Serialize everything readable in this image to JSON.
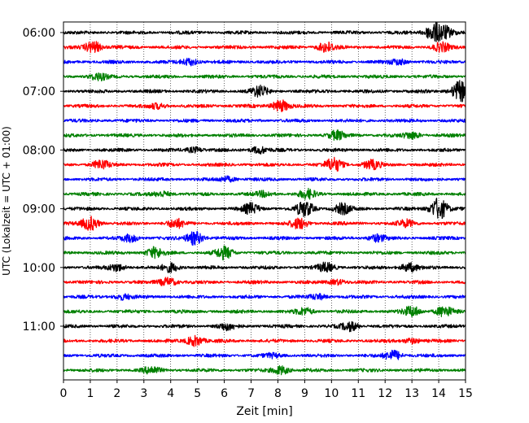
{
  "chart_data": {
    "type": "line",
    "title": "",
    "xlabel": "Zeit  [min]",
    "ylabel": "UTC (Lokalzeit = UTC + 01:00)",
    "xlim": [
      0,
      15
    ],
    "x_ticks": [
      "0",
      "1",
      "2",
      "3",
      "4",
      "5",
      "6",
      "7",
      "8",
      "9",
      "10",
      "11",
      "12",
      "13",
      "14",
      "15"
    ],
    "y_tick_labels": [
      "06:00",
      "07:00",
      "08:00",
      "09:00",
      "10:00",
      "11:00"
    ],
    "trace_interval_min": 15,
    "grid": "vertical dotted",
    "colors": [
      "#000000",
      "#ff0000",
      "#0000ff",
      "#008000"
    ],
    "traces": [
      {
        "start": "06:00",
        "color": "#000000",
        "events": [
          {
            "t": 13.8,
            "amp": 10
          },
          {
            "t": 14.2,
            "amp": 7
          }
        ]
      },
      {
        "start": "06:15",
        "color": "#ff0000",
        "events": [
          {
            "t": 1.1,
            "amp": 7
          },
          {
            "t": 9.8,
            "amp": 6
          },
          {
            "t": 14.1,
            "amp": 5
          }
        ]
      },
      {
        "start": "06:30",
        "color": "#0000ff",
        "events": [
          {
            "t": 4.7,
            "amp": 4
          },
          {
            "t": 12.5,
            "amp": 3
          }
        ]
      },
      {
        "start": "06:45",
        "color": "#008000",
        "events": [
          {
            "t": 1.3,
            "amp": 4
          }
        ]
      },
      {
        "start": "07:00",
        "color": "#000000",
        "events": [
          {
            "t": 7.3,
            "amp": 6
          },
          {
            "t": 14.8,
            "amp": 12
          }
        ]
      },
      {
        "start": "07:15",
        "color": "#ff0000",
        "events": [
          {
            "t": 8.1,
            "amp": 7
          },
          {
            "t": 3.5,
            "amp": 3
          }
        ]
      },
      {
        "start": "07:30",
        "color": "#0000ff",
        "events": []
      },
      {
        "start": "07:45",
        "color": "#008000",
        "events": [
          {
            "t": 10.2,
            "amp": 5
          },
          {
            "t": 13.0,
            "amp": 4
          }
        ]
      },
      {
        "start": "08:00",
        "color": "#000000",
        "events": [
          {
            "t": 4.9,
            "amp": 3
          },
          {
            "t": 7.3,
            "amp": 4
          }
        ]
      },
      {
        "start": "08:15",
        "color": "#ff0000",
        "events": [
          {
            "t": 1.4,
            "amp": 5
          },
          {
            "t": 10.1,
            "amp": 8
          },
          {
            "t": 11.5,
            "amp": 5
          }
        ]
      },
      {
        "start": "08:30",
        "color": "#0000ff",
        "events": [
          {
            "t": 6.1,
            "amp": 3
          }
        ]
      },
      {
        "start": "08:45",
        "color": "#008000",
        "events": [
          {
            "t": 3.7,
            "amp": 3
          },
          {
            "t": 7.5,
            "amp": 3
          },
          {
            "t": 9.1,
            "amp": 5
          }
        ]
      },
      {
        "start": "09:00",
        "color": "#000000",
        "events": [
          {
            "t": 7.0,
            "amp": 6
          },
          {
            "t": 9.0,
            "amp": 9
          },
          {
            "t": 10.4,
            "amp": 6
          },
          {
            "t": 14.0,
            "amp": 13
          }
        ]
      },
      {
        "start": "09:15",
        "color": "#ff0000",
        "events": [
          {
            "t": 1.0,
            "amp": 8
          },
          {
            "t": 4.2,
            "amp": 5
          },
          {
            "t": 8.8,
            "amp": 6
          },
          {
            "t": 12.8,
            "amp": 4
          }
        ]
      },
      {
        "start": "09:30",
        "color": "#0000ff",
        "events": [
          {
            "t": 2.5,
            "amp": 4
          },
          {
            "t": 4.9,
            "amp": 8
          },
          {
            "t": 11.7,
            "amp": 4
          }
        ]
      },
      {
        "start": "09:45",
        "color": "#008000",
        "events": [
          {
            "t": 3.4,
            "amp": 6
          },
          {
            "t": 6.0,
            "amp": 7
          }
        ]
      },
      {
        "start": "10:00",
        "color": "#000000",
        "events": [
          {
            "t": 2.0,
            "amp": 4
          },
          {
            "t": 4.0,
            "amp": 5
          },
          {
            "t": 9.8,
            "amp": 5
          },
          {
            "t": 12.9,
            "amp": 5
          }
        ]
      },
      {
        "start": "10:15",
        "color": "#ff0000",
        "events": [
          {
            "t": 3.9,
            "amp": 5
          },
          {
            "t": 10.2,
            "amp": 3
          }
        ]
      },
      {
        "start": "10:30",
        "color": "#0000ff",
        "events": [
          {
            "t": 2.2,
            "amp": 3
          },
          {
            "t": 9.5,
            "amp": 3
          }
        ]
      },
      {
        "start": "10:45",
        "color": "#008000",
        "events": [
          {
            "t": 9.0,
            "amp": 4
          },
          {
            "t": 13.0,
            "amp": 6
          },
          {
            "t": 14.2,
            "amp": 6
          }
        ]
      },
      {
        "start": "11:00",
        "color": "#000000",
        "events": [
          {
            "t": 6.1,
            "amp": 4
          },
          {
            "t": 10.7,
            "amp": 5
          }
        ]
      },
      {
        "start": "11:15",
        "color": "#ff0000",
        "events": [
          {
            "t": 4.9,
            "amp": 6
          },
          {
            "t": 13.0,
            "amp": 3
          }
        ]
      },
      {
        "start": "11:30",
        "color": "#0000ff",
        "events": [
          {
            "t": 12.3,
            "amp": 6
          },
          {
            "t": 7.8,
            "amp": 2
          }
        ]
      },
      {
        "start": "11:45",
        "color": "#008000",
        "events": [
          {
            "t": 3.3,
            "amp": 4
          },
          {
            "t": 8.1,
            "amp": 5
          }
        ]
      }
    ]
  }
}
